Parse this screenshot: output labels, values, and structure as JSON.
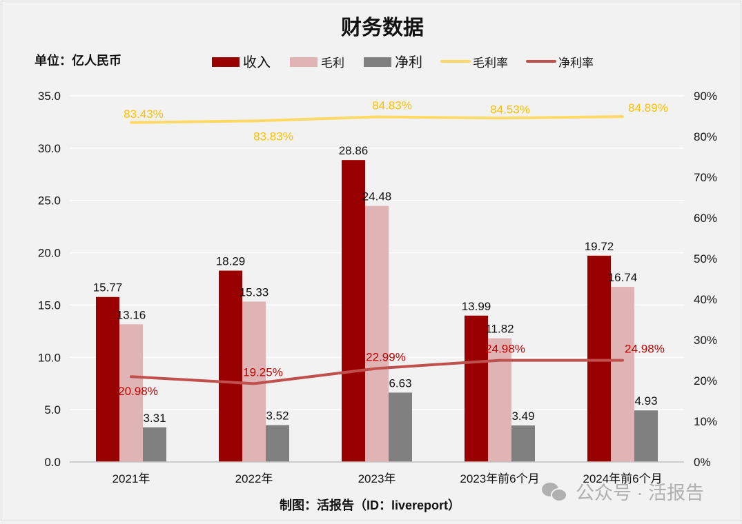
{
  "chart_data": {
    "type": "bar",
    "title": "财务数据",
    "unit_label": "单位：亿人民币",
    "categories": [
      "2021年",
      "2022年",
      "2023年",
      "2023年前6个月",
      "2024年前6个月"
    ],
    "series": [
      {
        "name": "收入",
        "kind": "bar",
        "axis": "left",
        "color": "#990000",
        "values": [
          15.77,
          18.29,
          28.86,
          13.99,
          19.72
        ],
        "labels": [
          "15.77",
          "18.29",
          "28.86",
          "13.99",
          "19.72"
        ]
      },
      {
        "name": "毛利",
        "kind": "bar",
        "axis": "left",
        "color": "#e0b4b4",
        "values": [
          13.16,
          15.33,
          24.48,
          11.82,
          16.74
        ],
        "labels": [
          "13.16",
          "15.33",
          "24.48",
          "11.82",
          "16.74"
        ]
      },
      {
        "name": "净利",
        "kind": "bar",
        "axis": "left",
        "color": "#808080",
        "values": [
          3.31,
          3.52,
          6.63,
          3.49,
          4.93
        ],
        "labels": [
          "3.31",
          "3.52",
          "6.63",
          "3.49",
          "4.93"
        ]
      },
      {
        "name": "毛利率",
        "kind": "line",
        "axis": "right",
        "color": "#ffd966",
        "label_color": "#ffc000",
        "values": [
          83.43,
          83.83,
          84.83,
          84.53,
          84.89
        ],
        "labels": [
          "83.43%",
          "83.83%",
          "84.83%",
          "84.53%",
          "84.89%"
        ]
      },
      {
        "name": "净利率",
        "kind": "line",
        "axis": "right",
        "color": "#c0504d",
        "label_color": "#c00000",
        "values": [
          20.98,
          19.25,
          22.99,
          24.98,
          24.98
        ],
        "labels": [
          "20.98%",
          "19.25%",
          "22.99%",
          "24.98%",
          "24.98%"
        ]
      }
    ],
    "y_left": {
      "range": [
        0,
        35
      ],
      "ticks": [
        "0.0",
        "5.0",
        "10.0",
        "15.0",
        "20.0",
        "25.0",
        "30.0",
        "35.0"
      ]
    },
    "y_right": {
      "range": [
        0,
        90
      ],
      "ticks": [
        "0%",
        "10%",
        "20%",
        "30%",
        "40%",
        "50%",
        "60%",
        "70%",
        "80%",
        "90%"
      ]
    },
    "grid": true,
    "legend_position": "top"
  },
  "footer": {
    "credit": "制图：活报告（ID：livereport）",
    "watermark": "公众号 · 活报告"
  }
}
